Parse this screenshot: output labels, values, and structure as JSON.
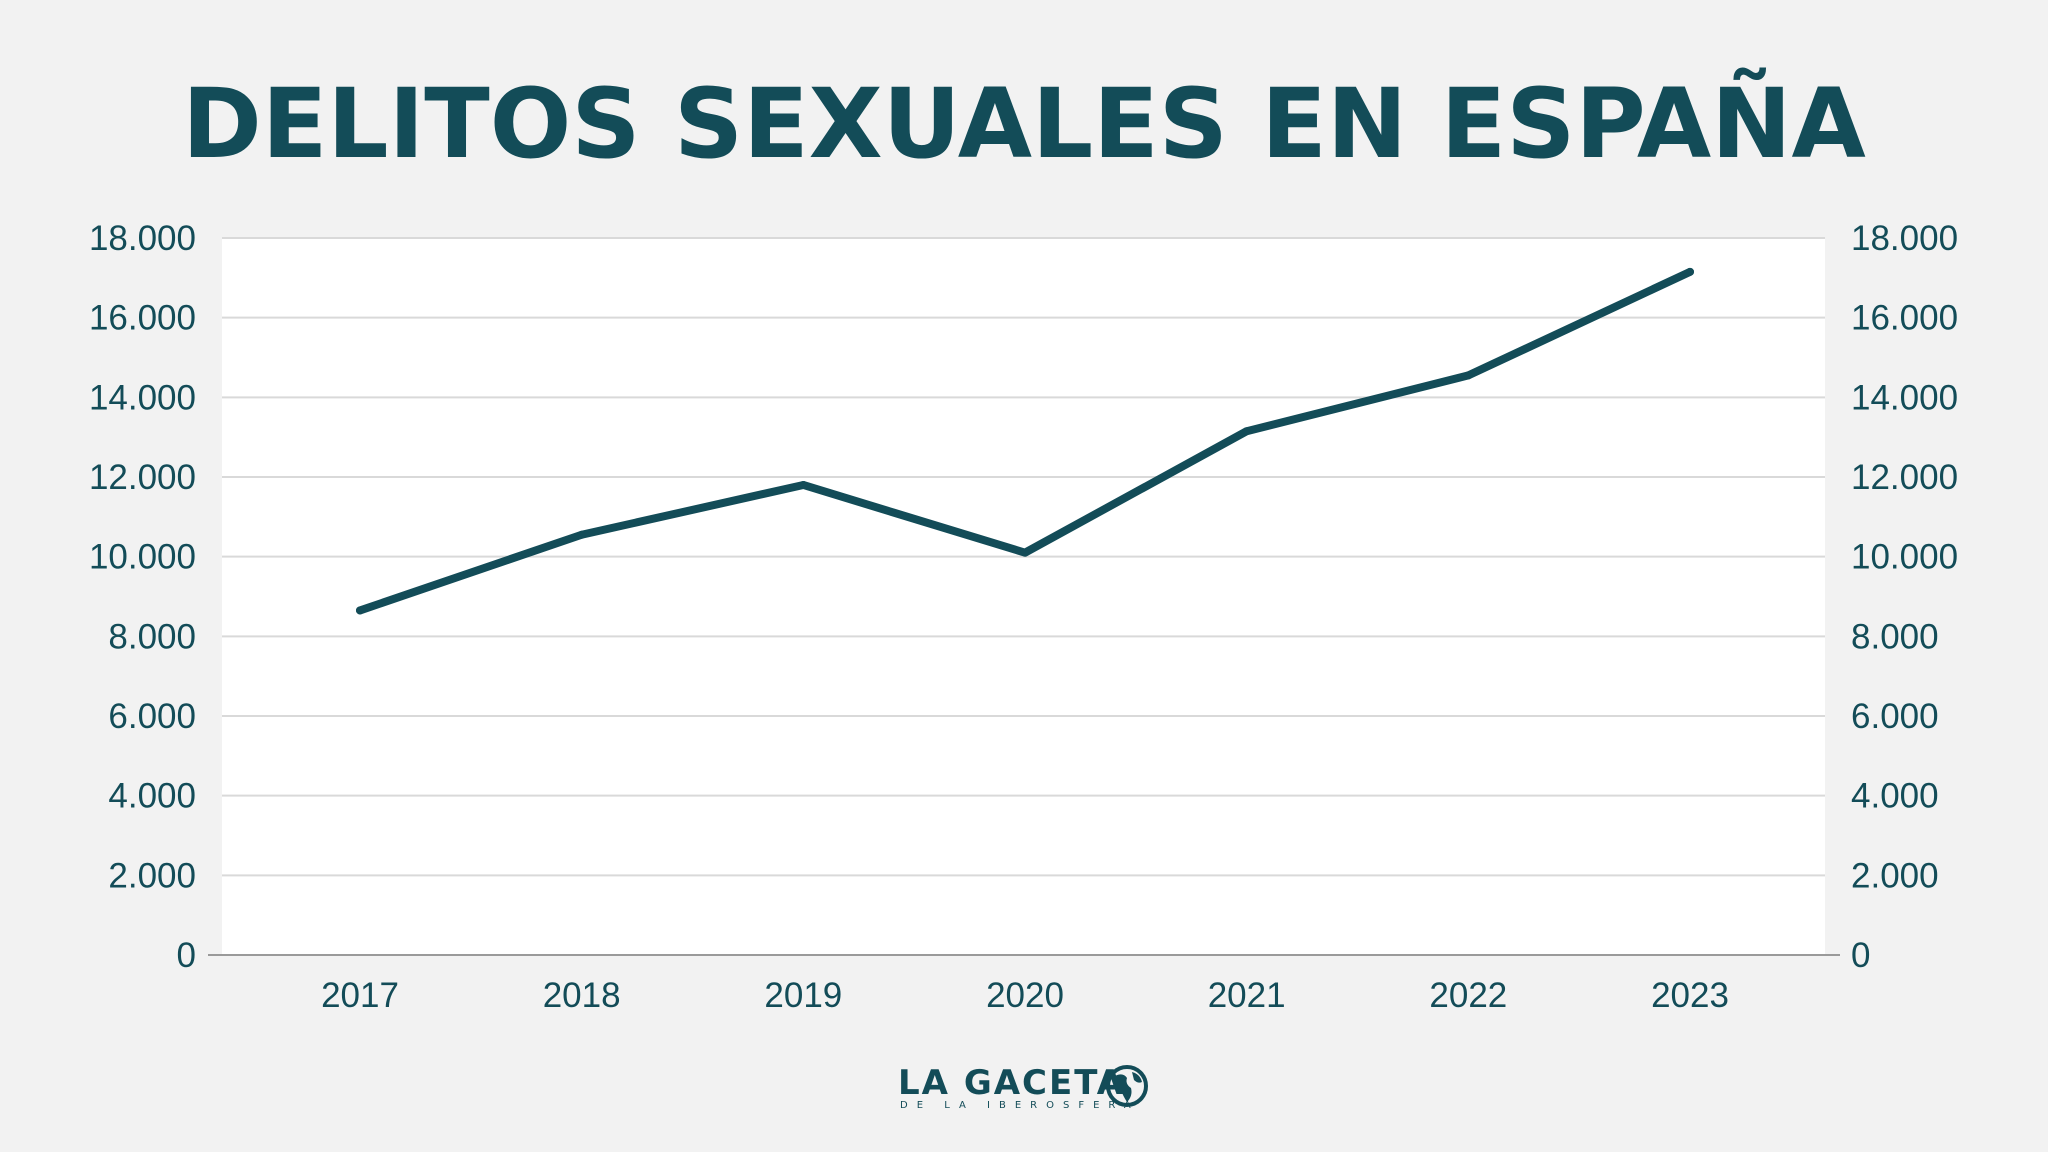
{
  "chart_data": {
    "type": "line",
    "title": "DELITOS SEXUALES EN ESPAÑA",
    "xlabel": "",
    "ylabel": "",
    "categories": [
      "2017",
      "2018",
      "2019",
      "2020",
      "2021",
      "2022",
      "2023"
    ],
    "series": [
      {
        "values": [
          8650,
          10550,
          11800,
          10100,
          13150,
          14550,
          17150
        ],
        "color": "#134c58"
      }
    ],
    "ylim": [
      0,
      18000
    ],
    "yticks": [
      0,
      2000,
      4000,
      6000,
      8000,
      10000,
      12000,
      14000,
      16000,
      18000
    ],
    "ytick_labels": [
      "0",
      "2.000",
      "4.000",
      "6.000",
      "8.000",
      "10.000",
      "12.000",
      "14.000",
      "16.000",
      "18.000"
    ],
    "y_axis_sides": [
      "left",
      "right"
    ],
    "grid": true,
    "legend": "none"
  },
  "colors": {
    "primary": "#134c58",
    "background": "#f2f2f2",
    "plot_background": "#ffffff",
    "grid": "#d9d9d9"
  },
  "logo": {
    "name": "LA GACETA",
    "subtitle": "DE LA IBEROSFERA",
    "icon": "globe-icon"
  }
}
